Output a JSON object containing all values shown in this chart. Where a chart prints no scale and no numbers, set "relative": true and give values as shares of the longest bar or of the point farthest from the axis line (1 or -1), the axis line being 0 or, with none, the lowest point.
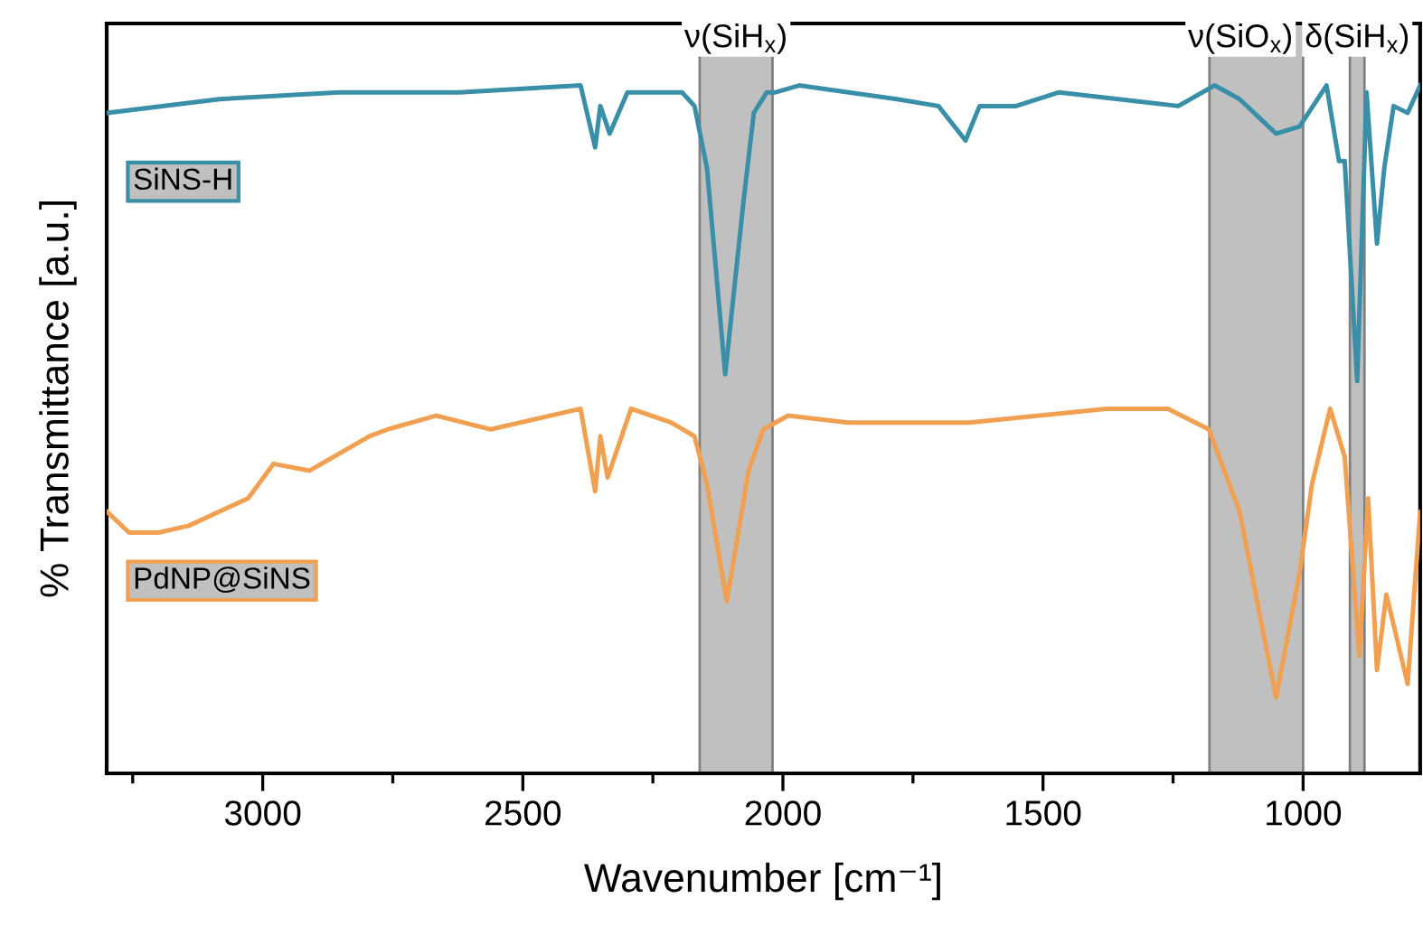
{
  "chart_data": {
    "type": "line",
    "relative": true,
    "xlabel": "Wavenumber [cm⁻¹]",
    "ylabel": "% Transmittance [a.u.]",
    "xlim": [
      3300,
      775
    ],
    "xticks": [
      {
        "value": 3250,
        "label": null
      },
      3000,
      {
        "value": 2750,
        "label": null
      },
      2500,
      {
        "value": 2250,
        "label": null
      },
      2000,
      {
        "value": 1750,
        "label": null
      },
      1500,
      {
        "value": 1250,
        "label": null
      },
      1000
    ],
    "grid": false,
    "legend": false,
    "marker": "none",
    "line_style": "solid",
    "bands": [
      {
        "axis": "x",
        "from": 2160,
        "to": 2020,
        "label": "ν(SiH$_{x}$)",
        "color": "#c0c0c0"
      },
      {
        "axis": "x",
        "from": 1180,
        "to": 1000,
        "label": "ν(SiO$_{x}$)",
        "color": "#c0c0c0"
      },
      {
        "axis": "x",
        "from": 910,
        "to": 882,
        "label": "δ(SiH$_{x}$)",
        "color": "#c0c0c0"
      }
    ],
    "series": [
      {
        "name": "SiNS-H",
        "color": "#3a8fa8",
        "x": [
          3300,
          3083,
          2854,
          2622,
          2389,
          2361,
          2351,
          2333,
          2299,
          2194,
          2170,
          2146,
          2111,
          2076,
          2056,
          2031,
          2014,
          1969,
          1781,
          1701,
          1649,
          1622,
          1552,
          1469,
          1240,
          1170,
          1122,
          1052,
          1007,
          955,
          931,
          920,
          896,
          878,
          868,
          858,
          844,
          826,
          799,
          775
        ],
        "values": [
          0.96,
          0.98,
          0.99,
          0.99,
          1.0,
          0.91,
          0.97,
          0.93,
          0.99,
          0.99,
          0.97,
          0.88,
          0.58,
          0.83,
          0.96,
          0.99,
          0.99,
          1.0,
          0.98,
          0.97,
          0.92,
          0.97,
          0.97,
          0.99,
          0.97,
          1.0,
          0.98,
          0.93,
          0.94,
          1.0,
          0.89,
          0.89,
          0.57,
          0.99,
          0.88,
          0.77,
          0.88,
          0.97,
          0.96,
          1.0
        ]
      },
      {
        "name": "PdNP@SiNS",
        "color": "#f0a050",
        "x": [
          3299,
          3257,
          3201,
          3142,
          3028,
          2979,
          2910,
          2795,
          2760,
          2667,
          2562,
          2389,
          2361,
          2351,
          2337,
          2292,
          2215,
          2170,
          2146,
          2108,
          2066,
          2038,
          1990,
          1875,
          1642,
          1378,
          1260,
          1181,
          1122,
          1052,
          1007,
          983,
          948,
          920,
          892,
          875,
          858,
          840,
          799,
          775
        ],
        "values": [
          0.38,
          0.35,
          0.35,
          0.36,
          0.4,
          0.45,
          0.44,
          0.49,
          0.5,
          0.52,
          0.5,
          0.53,
          0.41,
          0.49,
          0.43,
          0.53,
          0.51,
          0.49,
          0.42,
          0.25,
          0.44,
          0.5,
          0.52,
          0.51,
          0.51,
          0.53,
          0.53,
          0.5,
          0.38,
          0.11,
          0.29,
          0.42,
          0.53,
          0.46,
          0.17,
          0.4,
          0.15,
          0.26,
          0.13,
          0.38
        ]
      }
    ]
  }
}
